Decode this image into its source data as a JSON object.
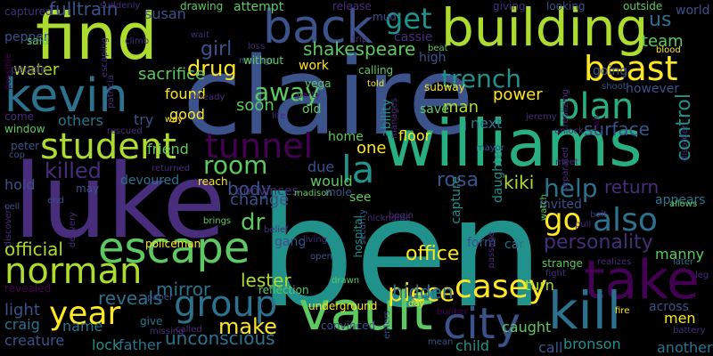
{
  "palette": {
    "background": "#000000",
    "dark_purple": "#440154",
    "purple": "#472d7b",
    "indigo": "#3b528b",
    "blue": "#2c728e",
    "teal": "#21918c",
    "green_teal": "#28ae80",
    "green": "#5ec962",
    "lime": "#addc30",
    "yellow": "#fde725"
  },
  "words": [
    {
      "text": "ben",
      "color": "#21918c"
    },
    {
      "text": "claire",
      "color": "#3b528b"
    },
    {
      "text": "luke",
      "color": "#472d7b"
    },
    {
      "text": "williams",
      "color": "#28ae80"
    },
    {
      "text": "find",
      "color": "#addc30"
    },
    {
      "text": "building",
      "color": "#addc30"
    },
    {
      "text": "kevin",
      "color": "#2c728e"
    },
    {
      "text": "back",
      "color": "#3b528b"
    },
    {
      "text": "vault",
      "color": "#5ec962"
    },
    {
      "text": "take",
      "color": "#440154"
    },
    {
      "text": "escape",
      "color": "#5ec962"
    },
    {
      "text": "kill",
      "color": "#2c728e"
    },
    {
      "text": "student",
      "color": "#addc30"
    },
    {
      "text": "norman",
      "color": "#addc30"
    },
    {
      "text": "group",
      "color": "#2c728e"
    },
    {
      "text": "city",
      "color": "#3b528b"
    },
    {
      "text": "plan",
      "color": "#28ae80"
    },
    {
      "text": "beast",
      "color": "#fde725"
    },
    {
      "text": "tunnel",
      "color": "#440154"
    },
    {
      "text": "casey",
      "color": "#fde725"
    },
    {
      "text": "also",
      "color": "#2c728e"
    },
    {
      "text": "la",
      "color": "#21918c"
    },
    {
      "text": "year",
      "color": "#fde725"
    },
    {
      "text": "trench",
      "color": "#21918c"
    },
    {
      "text": "get",
      "color": "#21918c"
    },
    {
      "text": "go",
      "color": "#fde725"
    },
    {
      "text": "room",
      "color": "#5ec962"
    },
    {
      "text": "help",
      "color": "#2c728e"
    },
    {
      "text": "away",
      "color": "#5ec962"
    },
    {
      "text": "personality",
      "color": "#472d7b"
    },
    {
      "text": "killed",
      "color": "#472d7b"
    },
    {
      "text": "official",
      "color": "#addc30"
    },
    {
      "text": "make",
      "color": "#fde725"
    },
    {
      "text": "piece",
      "color": "#fde725"
    },
    {
      "text": "drug",
      "color": "#fde725"
    },
    {
      "text": "girl",
      "color": "#3b528b"
    },
    {
      "text": "dr",
      "color": "#5ec962"
    },
    {
      "text": "control",
      "color": "#21918c"
    },
    {
      "text": "surface",
      "color": "#3b528b"
    },
    {
      "text": "return",
      "color": "#472d7b"
    },
    {
      "text": "office",
      "color": "#fde725"
    },
    {
      "text": "rosa",
      "color": "#3b528b"
    },
    {
      "text": "mirror",
      "color": "#2c728e"
    },
    {
      "text": "unconscious",
      "color": "#2c728e"
    },
    {
      "text": "lester",
      "color": "#addc30"
    },
    {
      "text": "hidden",
      "color": "#2c728e"
    },
    {
      "text": "reveals",
      "color": "#2c728e"
    },
    {
      "text": "shakespeare",
      "color": "#5ec962"
    },
    {
      "text": "us",
      "color": "#2c728e"
    },
    {
      "text": "team",
      "color": "#5ec962"
    },
    {
      "text": "world",
      "color": "#3b528b"
    },
    {
      "text": "fulltrain",
      "color": "#3b528b"
    },
    {
      "text": "susan",
      "color": "#3b528b"
    },
    {
      "text": "kiki",
      "color": "#addc30"
    },
    {
      "text": "man",
      "color": "#addc30"
    },
    {
      "text": "power",
      "color": "#fde725"
    },
    {
      "text": "next",
      "color": "#2c728e"
    },
    {
      "text": "one",
      "color": "#fde725"
    },
    {
      "text": "body",
      "color": "#3b528b"
    },
    {
      "text": "change",
      "color": "#3b528b"
    },
    {
      "text": "water",
      "color": "#addc30"
    },
    {
      "text": "sacrifice",
      "color": "#5ec962"
    },
    {
      "text": "others",
      "color": "#2c728e"
    },
    {
      "text": "found",
      "color": "#fde725"
    },
    {
      "text": "soon",
      "color": "#5ec962"
    },
    {
      "text": "good",
      "color": "#fde725"
    },
    {
      "text": "try",
      "color": "#3b528b"
    },
    {
      "text": "floor",
      "color": "#fde725"
    },
    {
      "text": "home",
      "color": "#5ec962"
    },
    {
      "text": "friend",
      "color": "#5ec962"
    },
    {
      "text": "due",
      "color": "#3b528b"
    },
    {
      "text": "would",
      "color": "#5ec962"
    },
    {
      "text": "hold",
      "color": "#3b528b"
    },
    {
      "text": "light",
      "color": "#3b528b"
    },
    {
      "text": "craig",
      "color": "#2c728e"
    },
    {
      "text": "creature",
      "color": "#3b528b"
    },
    {
      "text": "name",
      "color": "#2c728e"
    },
    {
      "text": "lock",
      "color": "#21918c"
    },
    {
      "text": "father",
      "color": "#2c728e"
    },
    {
      "text": "another",
      "color": "#2c728e"
    },
    {
      "text": "men",
      "color": "#fde725"
    },
    {
      "text": "caught",
      "color": "#5ec962"
    },
    {
      "text": "bronson",
      "color": "#21918c"
    },
    {
      "text": "call",
      "color": "#3b528b"
    },
    {
      "text": "child",
      "color": "#21918c"
    },
    {
      "text": "turn",
      "color": "#addc30"
    },
    {
      "text": "manny",
      "color": "#5ec962"
    },
    {
      "text": "across",
      "color": "#3b528b"
    },
    {
      "text": "gang",
      "color": "#3b528b"
    },
    {
      "text": "save",
      "color": "#5ec962"
    },
    {
      "text": "ability",
      "color": "#21918c"
    },
    {
      "text": "daughter",
      "color": "#21918c"
    },
    {
      "text": "capture",
      "color": "#21918c"
    },
    {
      "text": "cassie",
      "color": "#472d7b"
    },
    {
      "text": "high",
      "color": "#3b528b"
    },
    {
      "text": "pepper",
      "color": "#3b528b"
    },
    {
      "text": "drawing",
      "color": "#5ec962"
    },
    {
      "text": "attempt",
      "color": "#5ec962"
    },
    {
      "text": "however",
      "color": "#3b528b"
    },
    {
      "text": "appears",
      "color": "#2c728e"
    },
    {
      "text": "invited",
      "color": "#3b528b"
    },
    {
      "text": "devoured",
      "color": "#2c728e"
    },
    {
      "text": "convinces",
      "color": "#472d7b"
    },
    {
      "text": "see",
      "color": "#5ec962"
    },
    {
      "text": "strange",
      "color": "#5ec962"
    },
    {
      "text": "outside",
      "color": "#5ec962"
    },
    {
      "text": "looking",
      "color": "#3b528b"
    },
    {
      "text": "giving",
      "color": "#472d7b"
    },
    {
      "text": "release",
      "color": "#472d7b"
    },
    {
      "text": "mud",
      "color": "#3b528b"
    },
    {
      "text": "captured",
      "color": "#472d7b"
    },
    {
      "text": "said",
      "color": "#5ec962"
    },
    {
      "text": "people",
      "color": "#472d7b"
    },
    {
      "text": "come",
      "color": "#472d7b"
    },
    {
      "text": "window",
      "color": "#5ec962"
    },
    {
      "text": "peter",
      "color": "#3b528b"
    },
    {
      "text": "cop",
      "color": "#3b528b"
    },
    {
      "text": "possible",
      "color": "#440154"
    },
    {
      "text": "patricia",
      "color": "#472d7b"
    },
    {
      "text": "escaping",
      "color": "#472d7b"
    },
    {
      "text": "climb",
      "color": "#472d7b"
    },
    {
      "text": "wait",
      "color": "#472d7b"
    },
    {
      "text": "loss",
      "color": "#472d7b"
    },
    {
      "text": "manage",
      "color": "#3b528b"
    },
    {
      "text": "already",
      "color": "#472d7b"
    },
    {
      "text": "way",
      "color": "#fde725"
    },
    {
      "text": "without",
      "color": "#5ec962"
    },
    {
      "text": "vega",
      "color": "#5ec962"
    },
    {
      "text": "party",
      "color": "#472d7b"
    },
    {
      "text": "trip",
      "color": "#472d7b"
    },
    {
      "text": "told",
      "color": "#fde725"
    },
    {
      "text": "calling",
      "color": "#5ec962"
    },
    {
      "text": "beat",
      "color": "#5ec962"
    },
    {
      "text": "subway",
      "color": "#fde725"
    },
    {
      "text": "mayor",
      "color": "#3b528b"
    },
    {
      "text": "jeremy",
      "color": "#472d7b"
    },
    {
      "text": "realizing",
      "color": "#472d7b"
    },
    {
      "text": "manages",
      "color": "#472d7b"
    },
    {
      "text": "shoot",
      "color": "#3b528b"
    },
    {
      "text": "unlock",
      "color": "#472d7b"
    },
    {
      "text": "disorder",
      "color": "#472d7b"
    },
    {
      "text": "blood",
      "color": "#fde725"
    },
    {
      "text": "separated",
      "color": "#472d7b"
    },
    {
      "text": "meet",
      "color": "#472d7b"
    },
    {
      "text": "allows",
      "color": "#5ec962"
    },
    {
      "text": "bolt",
      "color": "#472d7b"
    },
    {
      "text": "pull",
      "color": "#472d7b"
    },
    {
      "text": "realizes",
      "color": "#472d7b"
    },
    {
      "text": "later",
      "color": "#2c728e"
    },
    {
      "text": "leg",
      "color": "#472d7b"
    },
    {
      "text": "fight",
      "color": "#472d7b"
    },
    {
      "text": "fire",
      "color": "#fde725"
    },
    {
      "text": "battery",
      "color": "#472d7b"
    },
    {
      "text": "bunker",
      "color": "#440154"
    },
    {
      "text": "mean",
      "color": "#3b528b"
    },
    {
      "text": "enters",
      "color": "#3b528b"
    },
    {
      "text": "convinced",
      "color": "#3b528b"
    },
    {
      "text": "day",
      "color": "#fde725"
    },
    {
      "text": "underground",
      "color": "#fde725"
    },
    {
      "text": "drawn",
      "color": "#5ec962"
    },
    {
      "text": "reflection",
      "color": "#5ec962"
    },
    {
      "text": "policeman",
      "color": "#fde725"
    },
    {
      "text": "paper",
      "color": "#3b528b"
    },
    {
      "text": "give",
      "color": "#2c728e"
    },
    {
      "text": "missing",
      "color": "#472d7b"
    },
    {
      "text": "called",
      "color": "#472d7b"
    },
    {
      "text": "revealed",
      "color": "#440154"
    },
    {
      "text": "suddenly",
      "color": "#472d7b"
    },
    {
      "text": "rescued",
      "color": "#472d7b"
    },
    {
      "text": "returned",
      "color": "#472d7b"
    },
    {
      "text": "reach",
      "color": "#fde725"
    },
    {
      "text": "brings",
      "color": "#5ec962"
    },
    {
      "text": "may",
      "color": "#3b528b"
    },
    {
      "text": "cell",
      "color": "#3b528b"
    },
    {
      "text": "end",
      "color": "#3b528b"
    },
    {
      "text": "discovers",
      "color": "#472d7b"
    },
    {
      "text": "delivery",
      "color": "#472d7b"
    },
    {
      "text": "security",
      "color": "#3b528b"
    },
    {
      "text": "belief",
      "color": "#472d7b"
    },
    {
      "text": "living",
      "color": "#472d7b"
    },
    {
      "text": "open",
      "color": "#3b528b"
    },
    {
      "text": "madison",
      "color": "#5ec962"
    },
    {
      "text": "nickname",
      "color": "#472d7b"
    },
    {
      "text": "mole",
      "color": "#3b528b"
    },
    {
      "text": "begin",
      "color": "#472d7b"
    },
    {
      "text": "hospital",
      "color": "#21918c"
    },
    {
      "text": "form",
      "color": "#3b528b"
    },
    {
      "text": "car",
      "color": "#2c728e"
    },
    {
      "text": "passage",
      "color": "#472d7b"
    },
    {
      "text": "watch",
      "color": "#5ec962"
    },
    {
      "text": "life",
      "color": "#472d7b"
    },
    {
      "text": "old",
      "color": "#5ec962"
    },
    {
      "text": "work",
      "color": "#fde725"
    },
    {
      "text": "going",
      "color": "#3b528b"
    },
    {
      "text": "hall",
      "color": "#440154"
    }
  ]
}
